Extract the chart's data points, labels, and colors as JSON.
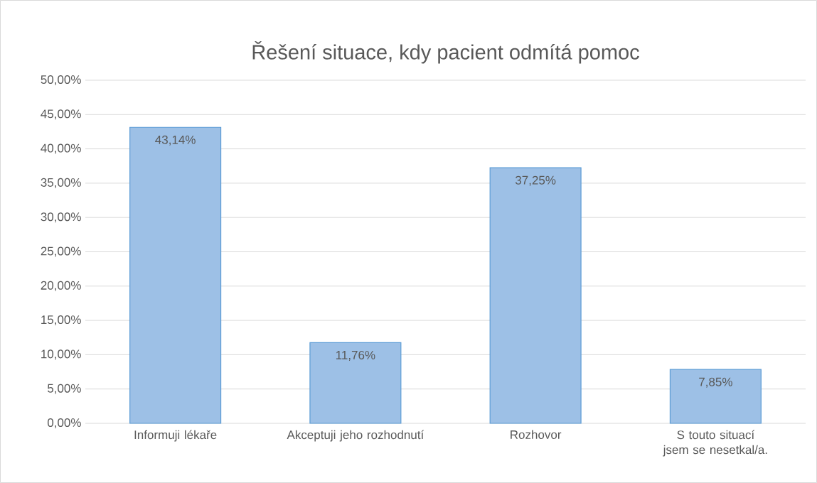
{
  "chart_data": {
    "type": "bar",
    "title": "Řešení situace, kdy pacient odmítá pomoc",
    "categories": [
      "Informuji lékaře",
      "Akceptuji jeho rozhodnutí",
      "Rozhovor",
      "S touto situací jsem se nesetkal/a."
    ],
    "values": [
      43.14,
      11.76,
      37.25,
      7.85
    ],
    "value_labels": [
      "43,14%",
      "11,76%",
      "37,25%",
      "7,85%"
    ],
    "color": "#9dc0e6",
    "ylim": [
      0,
      50
    ],
    "yticks": [
      {
        "value": 0,
        "label": "0,00%"
      },
      {
        "value": 5,
        "label": "5,00%"
      },
      {
        "value": 10,
        "label": "10,00%"
      },
      {
        "value": 15,
        "label": "15,00%"
      },
      {
        "value": 20,
        "label": "20,00%"
      },
      {
        "value": 25,
        "label": "25,00%"
      },
      {
        "value": 30,
        "label": "30,00%"
      },
      {
        "value": 35,
        "label": "35,00%"
      },
      {
        "value": 40,
        "label": "40,00%"
      },
      {
        "value": 45,
        "label": "45,00%"
      },
      {
        "value": 50,
        "label": "50,00%"
      }
    ],
    "grid": "y"
  }
}
